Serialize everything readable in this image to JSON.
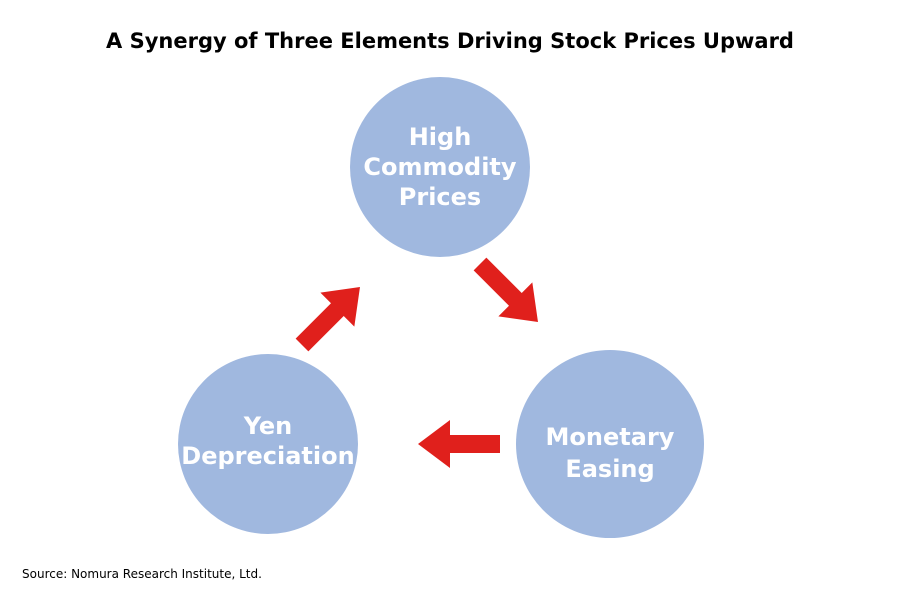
{
  "title": "A Synergy of Three Elements Driving Stock Prices Upward",
  "nodes": [
    {
      "label": [
        "High",
        "Commodity",
        "Prices"
      ]
    },
    {
      "label": [
        "Monetary",
        "Easing"
      ]
    },
    {
      "label": [
        "Yen",
        "Depreciation"
      ]
    }
  ],
  "source": "Source: Nomura Research Institute, Ltd."
}
